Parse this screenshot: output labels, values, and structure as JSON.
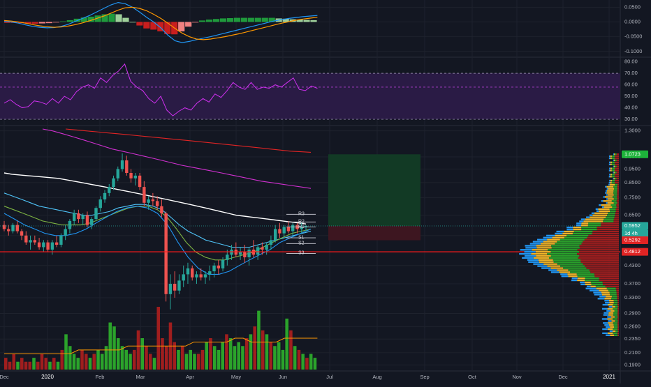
{
  "colors": {
    "background": "#131722",
    "grid": "#1e222d",
    "axis_text": "#b2b5be",
    "candle_up": "#26a69a",
    "candle_down": "#ef5350",
    "volume_up": "#2ba32b",
    "volume_down": "#a01e1e",
    "macd_line": "#2196f3",
    "macd_signal": "#ff9800",
    "rsi_line": "#d030f0",
    "rsi_band": "#2a1b45",
    "ma_white": "#ffffff",
    "ma_magenta": "#d030d0",
    "ma_red": "#e02424",
    "support_line": "#ff1a1a",
    "target_zone": "#123a25",
    "stop_zone": "#3d1620",
    "profile_up": "#2ba32b",
    "profile_down": "#a01e1e",
    "profile_blue": "#2196f3",
    "profile_yellow": "#f0b428"
  },
  "chart_data": [
    {
      "type": "line",
      "panel": "macd",
      "y_ticks": [
        "0.0500",
        "0.0000",
        "-0.0500",
        "-0.1000"
      ],
      "ylim": [
        -0.11,
        0.065
      ],
      "series": [
        {
          "values": [
            0.002,
            0.0,
            -0.004,
            -0.01,
            -0.015,
            -0.018,
            -0.02,
            -0.019,
            -0.015,
            -0.008,
            0.002,
            0.012,
            0.022,
            0.034,
            0.046,
            0.058,
            0.066,
            0.062,
            0.05,
            0.034,
            0.016,
            0.0,
            -0.02,
            -0.045,
            -0.064,
            -0.07,
            -0.066,
            -0.06,
            -0.055,
            -0.05,
            -0.044,
            -0.038,
            -0.032,
            -0.026,
            -0.02,
            -0.014,
            -0.008,
            -0.002,
            0.004,
            0.008,
            0.012,
            0.015,
            0.018,
            0.02,
            0.022
          ]
        },
        {
          "values": [
            0.005,
            0.003,
            0.0,
            -0.004,
            -0.009,
            -0.013,
            -0.016,
            -0.018,
            -0.017,
            -0.014,
            -0.009,
            -0.003,
            0.004,
            0.012,
            0.02,
            0.03,
            0.04,
            0.048,
            0.05,
            0.046,
            0.038,
            0.026,
            0.012,
            -0.004,
            -0.022,
            -0.038,
            -0.05,
            -0.058,
            -0.06,
            -0.058,
            -0.054,
            -0.05,
            -0.045,
            -0.04,
            -0.034,
            -0.028,
            -0.022,
            -0.016,
            -0.01,
            -0.004,
            0.001,
            0.006,
            0.01,
            0.013,
            0.016
          ]
        }
      ],
      "histogram": [
        -0.003,
        -0.003,
        -0.004,
        -0.006,
        -0.006,
        -0.005,
        -0.004,
        -0.001,
        0.002,
        0.006,
        0.011,
        0.015,
        0.018,
        0.022,
        0.026,
        0.028,
        0.026,
        0.014,
        0.0,
        -0.012,
        -0.022,
        -0.026,
        -0.032,
        -0.041,
        -0.042,
        -0.032,
        -0.016,
        -0.002,
        0.005,
        0.008,
        0.01,
        0.012,
        0.013,
        0.014,
        0.014,
        0.014,
        0.014,
        0.014,
        0.014,
        0.012,
        0.011,
        0.009,
        0.008,
        0.007,
        0.006
      ]
    },
    {
      "type": "line",
      "panel": "rsi",
      "y_ticks": [
        "80.00",
        "70.00",
        "60.00",
        "50.00",
        "40.00",
        "30.00"
      ],
      "ylim": [
        27,
        81
      ],
      "bands": [
        70,
        58,
        30
      ],
      "series": [
        {
          "values": [
            44,
            47,
            43,
            40,
            41,
            46,
            45,
            43,
            48,
            44,
            50,
            47,
            54,
            58,
            60,
            57,
            66,
            62,
            68,
            72,
            78,
            63,
            58,
            55,
            48,
            44,
            50,
            38,
            33,
            37,
            40,
            38,
            44,
            48,
            45,
            52,
            49,
            55,
            62,
            58,
            56,
            62,
            56,
            58,
            57,
            60,
            58,
            62,
            66,
            56,
            55,
            59,
            57
          ]
        }
      ]
    },
    {
      "type": "candlestick",
      "panel": "price",
      "x_ticks": [
        "Dec",
        "2020",
        "Feb",
        "Mar",
        "Apr",
        "May",
        "Jun",
        "Jul",
        "Aug",
        "Sep",
        "Oct",
        "Nov",
        "Dec",
        "2021"
      ],
      "y_ticks": [
        "1.3000",
        "1.0500",
        "0.9500",
        "0.8500",
        "0.7500",
        "0.6500",
        "0.5500",
        "0.4300",
        "0.3700",
        "0.3300",
        "0.2900",
        "0.2600",
        "0.2350",
        "0.2100",
        "0.1900"
      ],
      "ylim": [
        0.185,
        1.32
      ],
      "log_scale": true,
      "price_labels": [
        {
          "text": "1.0723",
          "color": "#1db33a"
        },
        {
          "text": "0.5952",
          "color": "#26a69a"
        },
        {
          "text": "1d 4h",
          "color": "#26a69a"
        },
        {
          "text": "0.5292",
          "color": "#e02424"
        },
        {
          "text": "0.4812",
          "color": "#e02424"
        }
      ],
      "pivot_labels": [
        "R3",
        "R2",
        "R1",
        "S1",
        "S2",
        "S3"
      ],
      "pivot_levels": [
        0.655,
        0.615,
        0.59,
        0.54,
        0.515,
        0.475
      ],
      "support_level": 0.4812,
      "last_price": 0.5952,
      "position": {
        "entry": 0.5952,
        "stop": 0.5292,
        "target": 1.0723
      },
      "candles": [
        [
          0.6,
          0.62,
          0.57,
          0.58
        ],
        [
          0.58,
          0.6,
          0.55,
          0.57
        ],
        [
          0.57,
          0.61,
          0.56,
          0.6
        ],
        [
          0.6,
          0.62,
          0.56,
          0.57
        ],
        [
          0.57,
          0.58,
          0.53,
          0.55
        ],
        [
          0.55,
          0.57,
          0.51,
          0.52
        ],
        [
          0.52,
          0.55,
          0.49,
          0.53
        ],
        [
          0.53,
          0.55,
          0.51,
          0.52
        ],
        [
          0.52,
          0.54,
          0.49,
          0.5
        ],
        [
          0.5,
          0.53,
          0.48,
          0.52
        ],
        [
          0.52,
          0.53,
          0.48,
          0.49
        ],
        [
          0.49,
          0.53,
          0.47,
          0.52
        ],
        [
          0.52,
          0.55,
          0.5,
          0.51
        ],
        [
          0.51,
          0.56,
          0.5,
          0.55
        ],
        [
          0.55,
          0.6,
          0.53,
          0.58
        ],
        [
          0.58,
          0.63,
          0.56,
          0.62
        ],
        [
          0.62,
          0.68,
          0.6,
          0.66
        ],
        [
          0.66,
          0.68,
          0.61,
          0.63
        ],
        [
          0.63,
          0.66,
          0.6,
          0.65
        ],
        [
          0.65,
          0.67,
          0.59,
          0.6
        ],
        [
          0.6,
          0.64,
          0.58,
          0.63
        ],
        [
          0.63,
          0.7,
          0.62,
          0.69
        ],
        [
          0.69,
          0.76,
          0.67,
          0.74
        ],
        [
          0.74,
          0.8,
          0.72,
          0.78
        ],
        [
          0.78,
          0.84,
          0.76,
          0.82
        ],
        [
          0.82,
          0.9,
          0.8,
          0.88
        ],
        [
          0.88,
          0.97,
          0.86,
          0.95
        ],
        [
          0.95,
          1.08,
          0.93,
          1.02
        ],
        [
          1.02,
          1.06,
          0.9,
          0.92
        ],
        [
          0.92,
          0.95,
          0.85,
          0.88
        ],
        [
          0.88,
          0.92,
          0.83,
          0.9
        ],
        [
          0.9,
          0.92,
          0.8,
          0.82
        ],
        [
          0.82,
          0.86,
          0.7,
          0.72
        ],
        [
          0.72,
          0.76,
          0.68,
          0.74
        ],
        [
          0.74,
          0.78,
          0.7,
          0.73
        ],
        [
          0.73,
          0.76,
          0.68,
          0.7
        ],
        [
          0.7,
          0.74,
          0.64,
          0.66
        ],
        [
          0.66,
          0.67,
          0.32,
          0.34
        ],
        [
          0.34,
          0.4,
          0.3,
          0.37
        ],
        [
          0.37,
          0.41,
          0.33,
          0.35
        ],
        [
          0.35,
          0.4,
          0.34,
          0.38
        ],
        [
          0.38,
          0.43,
          0.36,
          0.4
        ],
        [
          0.4,
          0.44,
          0.37,
          0.42
        ],
        [
          0.42,
          0.43,
          0.38,
          0.39
        ],
        [
          0.39,
          0.41,
          0.37,
          0.4
        ],
        [
          0.4,
          0.42,
          0.38,
          0.39
        ],
        [
          0.39,
          0.41,
          0.37,
          0.4
        ],
        [
          0.4,
          0.43,
          0.38,
          0.41
        ],
        [
          0.41,
          0.44,
          0.39,
          0.43
        ],
        [
          0.43,
          0.45,
          0.4,
          0.42
        ],
        [
          0.42,
          0.46,
          0.41,
          0.45
        ],
        [
          0.45,
          0.49,
          0.43,
          0.47
        ],
        [
          0.47,
          0.51,
          0.45,
          0.49
        ],
        [
          0.49,
          0.52,
          0.46,
          0.47
        ],
        [
          0.47,
          0.5,
          0.45,
          0.48
        ],
        [
          0.48,
          0.51,
          0.44,
          0.46
        ],
        [
          0.46,
          0.5,
          0.43,
          0.49
        ],
        [
          0.49,
          0.53,
          0.46,
          0.47
        ],
        [
          0.47,
          0.51,
          0.45,
          0.5
        ],
        [
          0.5,
          0.52,
          0.47,
          0.49
        ],
        [
          0.49,
          0.52,
          0.47,
          0.51
        ],
        [
          0.51,
          0.55,
          0.49,
          0.53
        ],
        [
          0.53,
          0.6,
          0.52,
          0.58
        ],
        [
          0.58,
          0.61,
          0.54,
          0.56
        ],
        [
          0.56,
          0.6,
          0.54,
          0.59
        ],
        [
          0.59,
          0.62,
          0.56,
          0.57
        ],
        [
          0.57,
          0.61,
          0.55,
          0.6
        ],
        [
          0.6,
          0.61,
          0.56,
          0.58
        ],
        [
          0.58,
          0.61,
          0.56,
          0.59
        ],
        [
          0.59,
          0.6,
          0.57,
          0.5952
        ]
      ],
      "moving_averages": [
        {
          "values": [
            0.92,
            0.91,
            0.905,
            0.9,
            0.895,
            0.89,
            0.885,
            0.88,
            0.87,
            0.86,
            0.85,
            0.84,
            0.83,
            0.82,
            0.81,
            0.8,
            0.79,
            0.78,
            0.77,
            0.76,
            0.75,
            0.74,
            0.73,
            0.72,
            0.71,
            0.7,
            0.69,
            0.68,
            0.67,
            0.66,
            0.65,
            0.645,
            0.64,
            0.635,
            0.63,
            0.625,
            0.62,
            0.615,
            0.61,
            0.605
          ]
        },
        {
          "values": [
            1.32,
            1.3,
            1.27,
            1.24,
            1.21,
            1.18,
            1.15,
            1.12,
            1.1,
            1.08,
            1.06,
            1.04,
            1.02,
            1.0,
            0.98,
            0.965,
            0.95,
            0.935,
            0.92,
            0.905,
            0.89,
            0.875,
            0.86,
            0.85,
            0.84,
            0.83,
            0.82,
            0.81
          ]
        },
        {
          "values": [
            1.32,
            1.31,
            1.3,
            1.29,
            1.28,
            1.27,
            1.26,
            1.25,
            1.24,
            1.23,
            1.22,
            1.21,
            1.2,
            1.19,
            1.18,
            1.17,
            1.16,
            1.15,
            1.14,
            1.13,
            1.12,
            1.11,
            1.1,
            1.095,
            1.09
          ]
        },
        {
          "values": [
            0.78,
            0.76,
            0.74,
            0.72,
            0.7,
            0.69,
            0.68,
            0.67,
            0.66,
            0.65,
            0.65,
            0.66,
            0.67,
            0.69,
            0.7,
            0.71,
            0.71,
            0.7,
            0.68,
            0.64,
            0.6,
            0.57,
            0.55,
            0.53,
            0.52,
            0.51,
            0.5,
            0.5,
            0.5,
            0.51,
            0.52,
            0.53,
            0.54,
            0.55,
            0.56,
            0.57
          ]
        },
        {
          "values": [
            0.7,
            0.68,
            0.66,
            0.64,
            0.62,
            0.61,
            0.6,
            0.6,
            0.6,
            0.61,
            0.63,
            0.65,
            0.67,
            0.69,
            0.7,
            0.7,
            0.68,
            0.64,
            0.58,
            0.52,
            0.48,
            0.46,
            0.45,
            0.45,
            0.46,
            0.47,
            0.48,
            0.5,
            0.52,
            0.54,
            0.56,
            0.57,
            0.58
          ]
        },
        {
          "values": [
            0.66,
            0.63,
            0.6,
            0.58,
            0.56,
            0.55,
            0.55,
            0.56,
            0.58,
            0.61,
            0.64,
            0.67,
            0.69,
            0.7,
            0.69,
            0.66,
            0.6,
            0.52,
            0.46,
            0.42,
            0.4,
            0.4,
            0.41,
            0.43,
            0.45,
            0.47,
            0.49,
            0.52,
            0.54,
            0.56,
            0.58
          ]
        }
      ],
      "volume": [
        3,
        2,
        4,
        2,
        3,
        2,
        2,
        3,
        2,
        4,
        3,
        2,
        3,
        2,
        5,
        9,
        6,
        4,
        3,
        5,
        4,
        3,
        4,
        5,
        4,
        6,
        12,
        11,
        8,
        6,
        5,
        4,
        5,
        10,
        8,
        6,
        4,
        3,
        16,
        8,
        6,
        12,
        7,
        5,
        6,
        4,
        5,
        4,
        4,
        5,
        7,
        8,
        6,
        5,
        7,
        9,
        8,
        6,
        7,
        6,
        8,
        9,
        11,
        15,
        10,
        9,
        7,
        6,
        7,
        5,
        13,
        10,
        6,
        5,
        4,
        3,
        4,
        3
      ],
      "volume_ma": [
        4,
        4,
        4,
        4,
        4,
        4,
        4,
        4,
        4,
        5,
        5,
        5,
        5,
        5,
        5,
        6,
        6,
        6,
        6,
        6,
        6,
        6,
        6,
        7,
        7,
        7,
        7,
        7,
        8,
        8,
        7,
        7,
        7,
        7,
        8,
        8,
        8,
        8,
        8
      ]
    }
  ]
}
